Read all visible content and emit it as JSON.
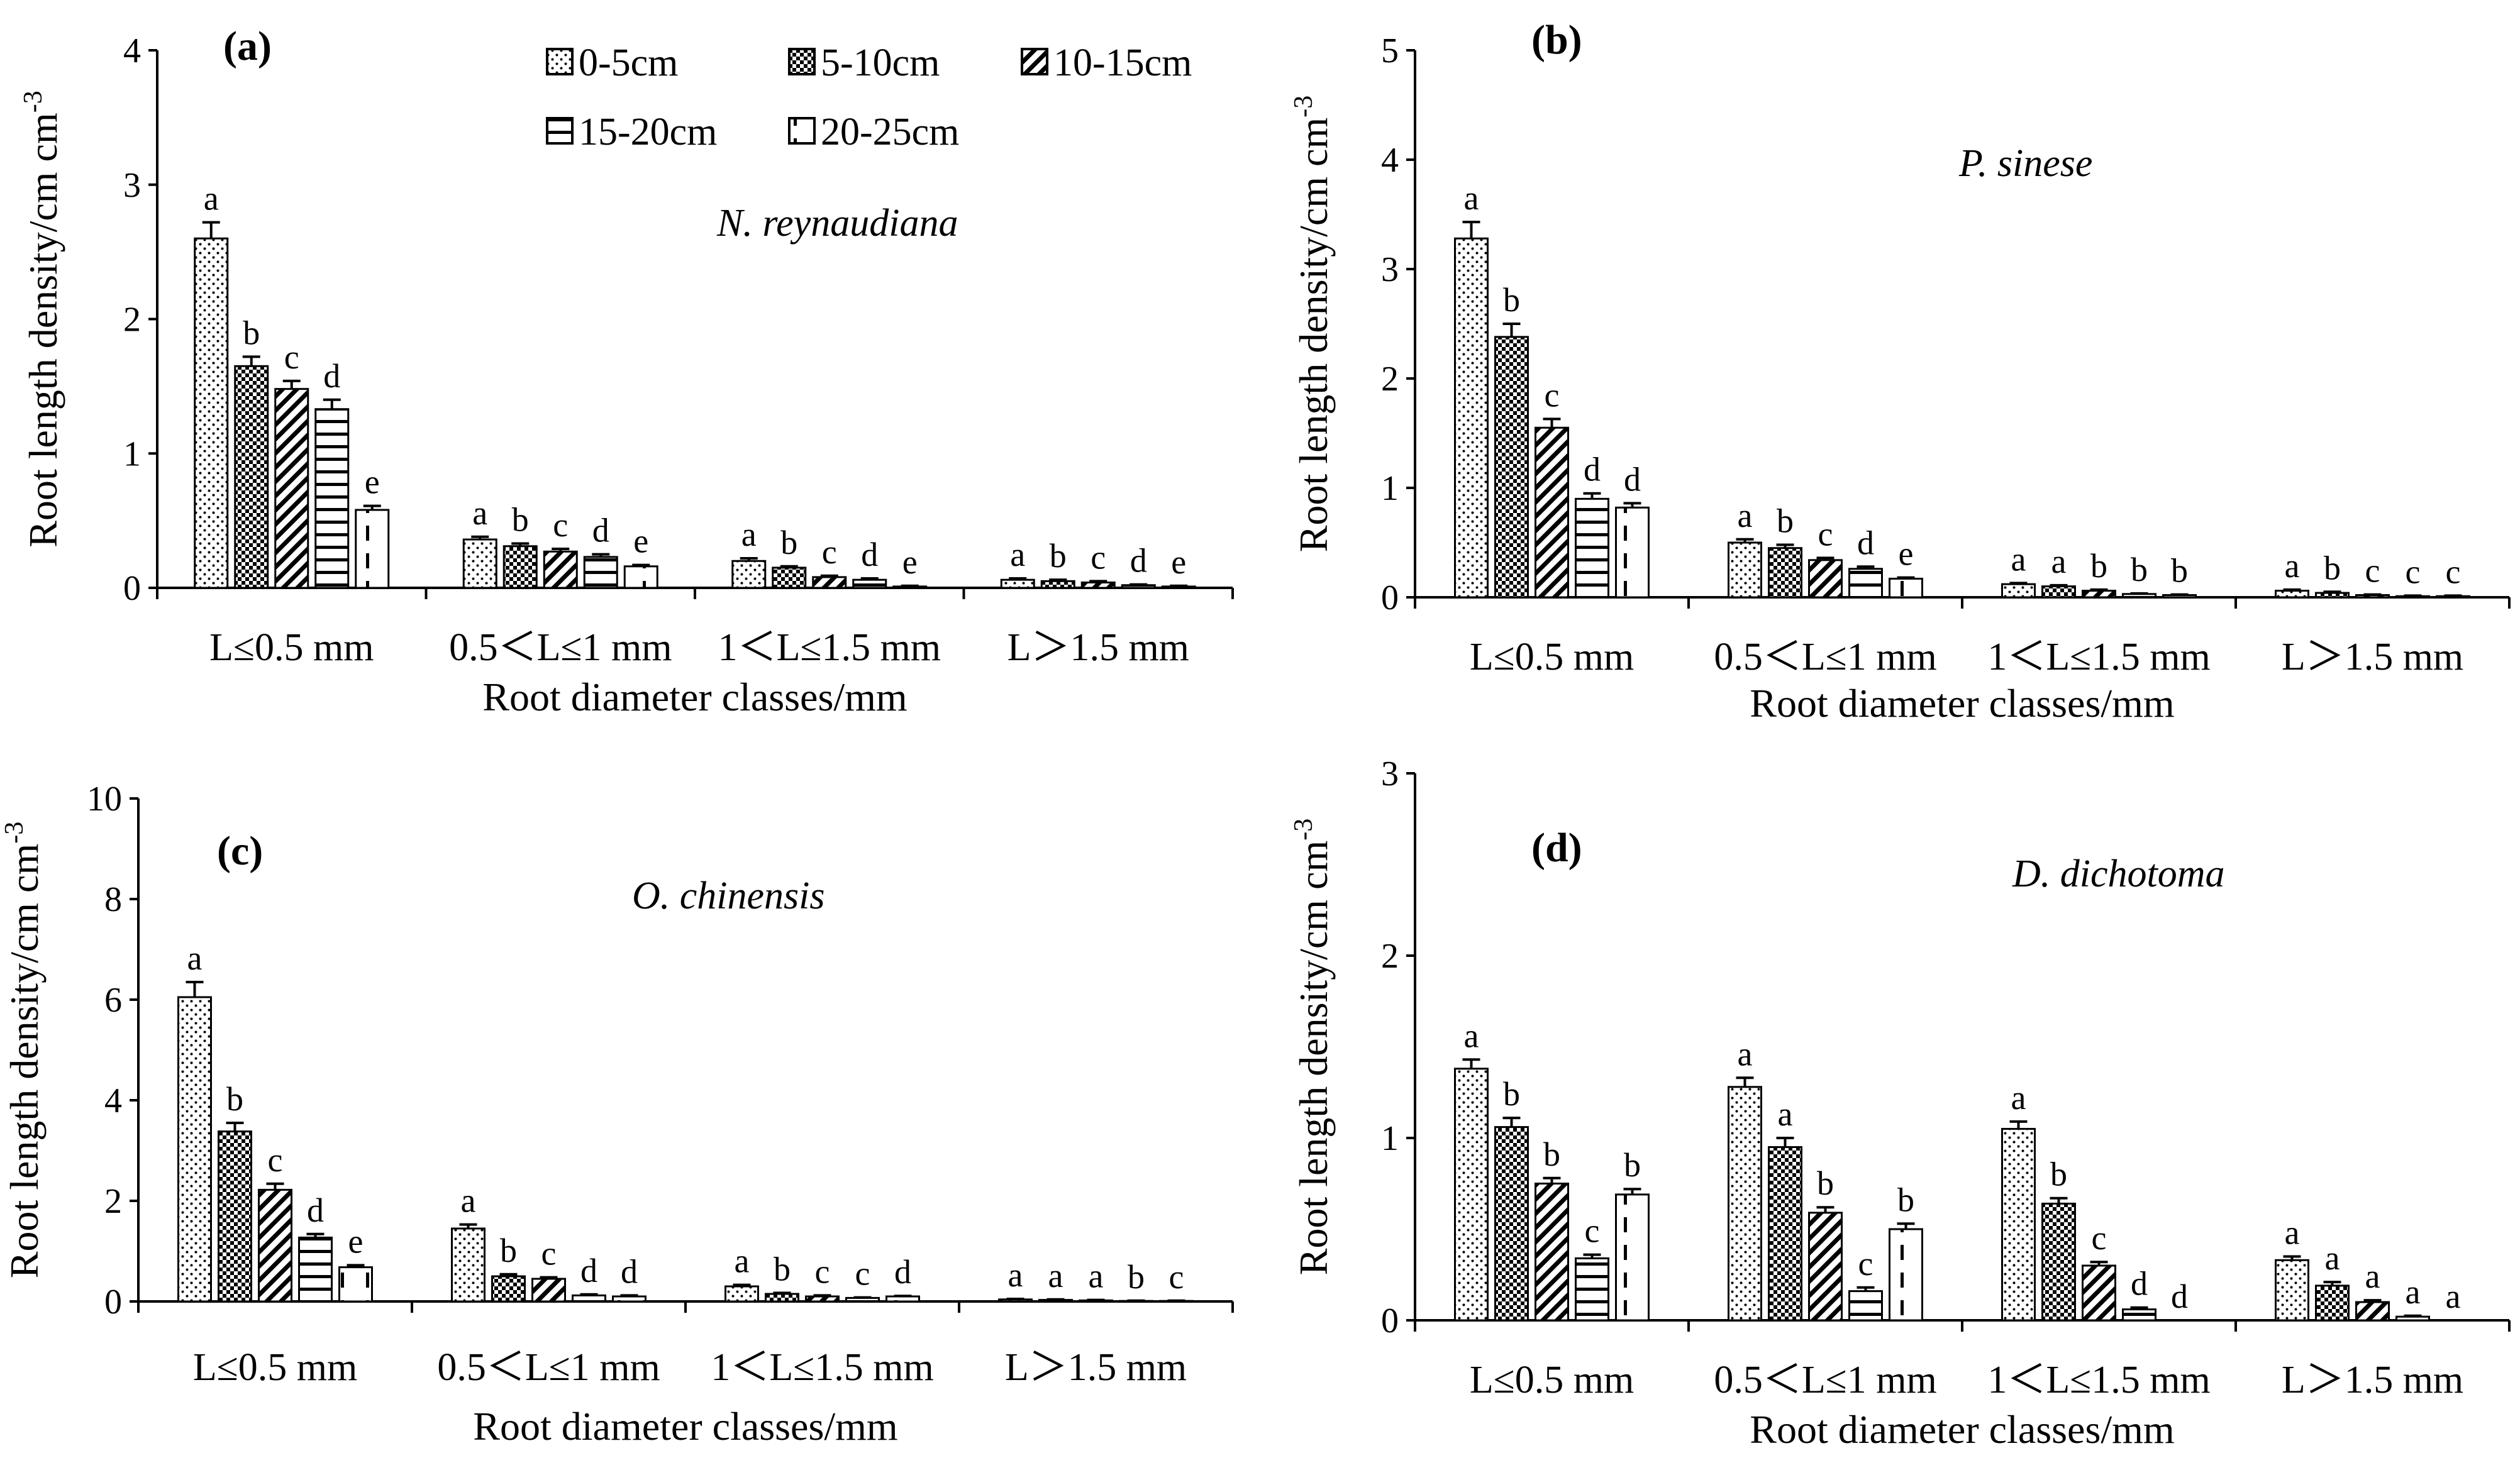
{
  "figure_name": "root-length-density-figure",
  "shared": {
    "categories": [
      "L≤0.5 mm",
      "0.5＜L≤1 mm",
      "1＜L≤1.5 mm",
      "L＞1.5 mm"
    ],
    "depth_series": [
      "0-5cm",
      "5-10cm",
      "10-15cm",
      "15-20cm",
      "20-25cm"
    ],
    "ylabel_main": "Root length density/cm cm",
    "ylabel_sup": "-3",
    "xlabel": "Root diameter classes/mm",
    "colors": {
      "axis": "#000000",
      "bar_stroke": "#000000",
      "bar_fill": "#ffffff",
      "pattern_ink": "#000000"
    }
  },
  "chart_data": [
    {
      "type": "bar",
      "panel": "(a)",
      "species": "N. reynaudiana",
      "categories": [
        "L≤0.5 mm",
        "0.5＜L≤1 mm",
        "1＜L≤1.5 mm",
        "L＞1.5 mm"
      ],
      "ylim": [
        0,
        4
      ],
      "yticks": [
        0,
        1,
        2,
        3,
        4
      ],
      "legend": "top-center",
      "series": [
        {
          "name": "0-5cm",
          "values": [
            2.6,
            0.36,
            0.2,
            0.06
          ],
          "errors": [
            0.12,
            0.02,
            0.02,
            0.01
          ],
          "letters": [
            "a",
            "a",
            "a",
            "a"
          ]
        },
        {
          "name": "5-10cm",
          "values": [
            1.65,
            0.31,
            0.15,
            0.05
          ],
          "errors": [
            0.07,
            0.02,
            0.01,
            0.01
          ],
          "letters": [
            "b",
            "b",
            "b",
            "b"
          ]
        },
        {
          "name": "10-15cm",
          "values": [
            1.48,
            0.27,
            0.08,
            0.04
          ],
          "errors": [
            0.06,
            0.02,
            0.01,
            0.01
          ],
          "letters": [
            "c",
            "c",
            "c",
            "c"
          ]
        },
        {
          "name": "15-20cm",
          "values": [
            1.33,
            0.23,
            0.06,
            0.02
          ],
          "errors": [
            0.07,
            0.02,
            0.01,
            0.005
          ],
          "letters": [
            "d",
            "d",
            "d",
            "d"
          ]
        },
        {
          "name": "20-25cm",
          "values": [
            0.58,
            0.16,
            0.01,
            0.01
          ],
          "errors": [
            0.03,
            0.01,
            0.005,
            0.005
          ],
          "letters": [
            "e",
            "e",
            "e",
            "e"
          ]
        }
      ]
    },
    {
      "type": "bar",
      "panel": "(b)",
      "species": "P. sinese",
      "categories": [
        "L≤0.5 mm",
        "0.5＜L≤1 mm",
        "1＜L≤1.5 mm",
        "L＞1.5 mm"
      ],
      "ylim": [
        0,
        5
      ],
      "yticks": [
        0,
        1,
        2,
        3,
        4,
        5
      ],
      "series": [
        {
          "name": "0-5cm",
          "values": [
            3.28,
            0.5,
            0.12,
            0.06
          ],
          "errors": [
            0.15,
            0.03,
            0.01,
            0.01
          ],
          "letters": [
            "a",
            "a",
            "a",
            "a"
          ]
        },
        {
          "name": "5-10cm",
          "values": [
            2.38,
            0.45,
            0.1,
            0.04
          ],
          "errors": [
            0.12,
            0.03,
            0.01,
            0.01
          ],
          "letters": [
            "b",
            "b",
            "a",
            "b"
          ]
        },
        {
          "name": "10-15cm",
          "values": [
            1.55,
            0.34,
            0.06,
            0.02
          ],
          "errors": [
            0.08,
            0.02,
            0.01,
            0.005
          ],
          "letters": [
            "c",
            "c",
            "b",
            "c"
          ]
        },
        {
          "name": "15-20cm",
          "values": [
            0.9,
            0.26,
            0.03,
            0.01
          ],
          "errors": [
            0.05,
            0.02,
            0.005,
            0.005
          ],
          "letters": [
            "d",
            "d",
            "b",
            "c"
          ]
        },
        {
          "name": "20-25cm",
          "values": [
            0.82,
            0.17,
            0.02,
            0.01
          ],
          "errors": [
            0.04,
            0.01,
            0.005,
            0.005
          ],
          "letters": [
            "d",
            "e",
            "b",
            "c"
          ]
        }
      ]
    },
    {
      "type": "bar",
      "panel": "(c)",
      "species": "O. chinensis",
      "categories": [
        "L≤0.5 mm",
        "0.5＜L≤1 mm",
        "1＜L≤1.5 mm",
        "L＞1.5 mm"
      ],
      "ylim": [
        0,
        10
      ],
      "yticks": [
        0,
        2,
        4,
        6,
        8,
        10
      ],
      "series": [
        {
          "name": "0-5cm",
          "values": [
            6.05,
            1.45,
            0.3,
            0.04
          ],
          "errors": [
            0.3,
            0.08,
            0.03,
            0.01
          ],
          "letters": [
            "a",
            "a",
            "a",
            "a"
          ]
        },
        {
          "name": "5-10cm",
          "values": [
            3.38,
            0.5,
            0.15,
            0.03
          ],
          "errors": [
            0.17,
            0.04,
            0.02,
            0.01
          ],
          "letters": [
            "b",
            "b",
            "b",
            "a"
          ]
        },
        {
          "name": "10-15cm",
          "values": [
            2.22,
            0.45,
            0.1,
            0.02
          ],
          "errors": [
            0.12,
            0.03,
            0.02,
            0.01
          ],
          "letters": [
            "c",
            "c",
            "c",
            "a"
          ]
        },
        {
          "name": "15-20cm",
          "values": [
            1.27,
            0.12,
            0.07,
            0.01
          ],
          "errors": [
            0.07,
            0.02,
            0.01,
            0.005
          ],
          "letters": [
            "d",
            "d",
            "c",
            "b"
          ]
        },
        {
          "name": "20-25cm",
          "values": [
            0.68,
            0.1,
            0.1,
            0.01
          ],
          "errors": [
            0.04,
            0.02,
            0.01,
            0.005
          ],
          "letters": [
            "e",
            "d",
            "d",
            "c"
          ]
        }
      ]
    },
    {
      "type": "bar",
      "panel": "(d)",
      "species": "D. dichotoma",
      "categories": [
        "L≤0.5 mm",
        "0.5＜L≤1 mm",
        "1＜L≤1.5 mm",
        "L＞1.5 mm"
      ],
      "ylim": [
        0,
        3
      ],
      "yticks": [
        0,
        1,
        2,
        3
      ],
      "series": [
        {
          "name": "0-5cm",
          "values": [
            1.38,
            1.28,
            1.05,
            0.33
          ],
          "errors": [
            0.05,
            0.05,
            0.04,
            0.02
          ],
          "letters": [
            "a",
            "a",
            "a",
            "a"
          ]
        },
        {
          "name": "5-10cm",
          "values": [
            1.06,
            0.95,
            0.64,
            0.19
          ],
          "errors": [
            0.05,
            0.05,
            0.03,
            0.02
          ],
          "letters": [
            "b",
            "a",
            "b",
            "a"
          ]
        },
        {
          "name": "10-15cm",
          "values": [
            0.75,
            0.59,
            0.3,
            0.1
          ],
          "errors": [
            0.03,
            0.03,
            0.02,
            0.01
          ],
          "letters": [
            "b",
            "b",
            "c",
            "a"
          ]
        },
        {
          "name": "15-20cm",
          "values": [
            0.34,
            0.16,
            0.06,
            0.02
          ],
          "errors": [
            0.02,
            0.02,
            0.01,
            0.005
          ],
          "letters": [
            "c",
            "c",
            "d",
            "a"
          ]
        },
        {
          "name": "20-25cm",
          "values": [
            0.69,
            0.5,
            0.0,
            0.0
          ],
          "errors": [
            0.03,
            0.03,
            0.0,
            0.0
          ],
          "letters": [
            "b",
            "b",
            "d",
            "a"
          ]
        }
      ]
    }
  ]
}
